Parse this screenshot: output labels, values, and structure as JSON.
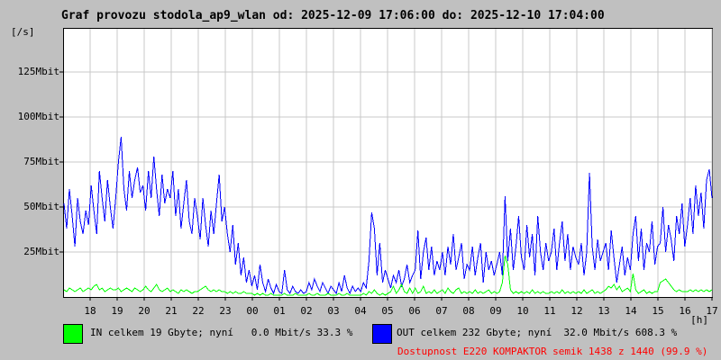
{
  "title": "Graf provozu stodola_ap9_wlan od: 2025-12-09 17:06:00 do: 2025-12-10 17:04:00",
  "colors": {
    "page_bg": "#c0c0c0",
    "plot_bg": "#ffffff",
    "grid": "#c8c8c8",
    "axis": "#000000",
    "in": "#00ff00",
    "out": "#0000ff",
    "availability": "#ff0000"
  },
  "y_axis": {
    "unit_label": "[/s]",
    "ticks": [
      {
        "label": "25Mbit",
        "value": 25
      },
      {
        "label": "50Mbit",
        "value": 50
      },
      {
        "label": "75Mbit",
        "value": 75
      },
      {
        "label": "100Mbit",
        "value": 100
      },
      {
        "label": "125Mbit",
        "value": 125
      }
    ]
  },
  "x_axis": {
    "unit_label": "[h]",
    "ticks": [
      "18",
      "19",
      "20",
      "21",
      "22",
      "23",
      "00",
      "01",
      "02",
      "03",
      "04",
      "05",
      "06",
      "07",
      "08",
      "09",
      "10",
      "11",
      "12",
      "13",
      "14",
      "15",
      "16",
      "17"
    ]
  },
  "legend": {
    "in": {
      "label": "IN celkem 19 Gbyte; nyní   0.0 Mbit/s 33.3 %",
      "color": "#00ff00"
    },
    "out": {
      "label": "OUT celkem 232 Gbyte; nyní  32.0 Mbit/s 608.3 %",
      "color": "#0000ff"
    },
    "availability": {
      "label": "Dostupnost E220 KOMPAKTOR semik 1438 z 1440 (99.9 %)",
      "color": "#ff0000"
    }
  },
  "chart_data": {
    "type": "line",
    "title": "Graf provozu stodola_ap9_wlan",
    "time_start": "2025-12-09 17:06:00",
    "time_end": "2025-12-10 17:04:00",
    "unit": "Mbit/s",
    "ylim": [
      0,
      149
    ],
    "grid": true,
    "sample_interval_minutes": 6,
    "series": [
      {
        "name": "OUT",
        "color": "#0000ff",
        "values": [
          52,
          38,
          60,
          45,
          28,
          55,
          42,
          35,
          48,
          40,
          62,
          48,
          35,
          70,
          55,
          42,
          65,
          50,
          38,
          55,
          75,
          89,
          60,
          48,
          70,
          55,
          65,
          72,
          58,
          62,
          48,
          70,
          55,
          78,
          60,
          45,
          68,
          52,
          60,
          55,
          70,
          45,
          60,
          38,
          52,
          65,
          42,
          35,
          55,
          45,
          32,
          55,
          40,
          28,
          48,
          35,
          52,
          68,
          42,
          50,
          35,
          25,
          40,
          18,
          30,
          12,
          22,
          8,
          15,
          6,
          12,
          4,
          18,
          8,
          3,
          10,
          5,
          2,
          7,
          3,
          2,
          15,
          4,
          2,
          6,
          3,
          2,
          4,
          2,
          3,
          8,
          4,
          10,
          6,
          3,
          8,
          5,
          2,
          6,
          4,
          2,
          8,
          3,
          12,
          5,
          2,
          6,
          3,
          5,
          3,
          8,
          5,
          20,
          47,
          38,
          12,
          30,
          8,
          15,
          10,
          5,
          12,
          8,
          15,
          6,
          10,
          18,
          8,
          12,
          15,
          37,
          10,
          25,
          33,
          15,
          28,
          12,
          20,
          15,
          25,
          12,
          28,
          18,
          35,
          15,
          22,
          30,
          10,
          18,
          15,
          28,
          12,
          22,
          30,
          8,
          25,
          15,
          20,
          12,
          18,
          25,
          12,
          56,
          20,
          38,
          15,
          28,
          45,
          22,
          15,
          40,
          22,
          35,
          12,
          45,
          25,
          15,
          30,
          20,
          25,
          38,
          15,
          30,
          42,
          20,
          35,
          15,
          28,
          22,
          18,
          30,
          12,
          25,
          69,
          28,
          15,
          32,
          20,
          25,
          30,
          15,
          37,
          22,
          8,
          18,
          28,
          12,
          22,
          15,
          35,
          45,
          20,
          38,
          15,
          30,
          25,
          42,
          18,
          28,
          30,
          50,
          25,
          40,
          32,
          20,
          45,
          35,
          52,
          28,
          40,
          55,
          35,
          62,
          45,
          58,
          38,
          65,
          71,
          55
        ]
      },
      {
        "name": "IN",
        "color": "#00ff00",
        "values": [
          4,
          3,
          5,
          4,
          3,
          4,
          5,
          3,
          4,
          5,
          4,
          6,
          7,
          4,
          5,
          3,
          4,
          5,
          4,
          4,
          5,
          3,
          4,
          5,
          4,
          3,
          5,
          4,
          3,
          4,
          6,
          4,
          3,
          5,
          7,
          4,
          3,
          4,
          5,
          3,
          4,
          3,
          2,
          4,
          3,
          4,
          3,
          2,
          3,
          3,
          4,
          5,
          6,
          4,
          3,
          4,
          3,
          4,
          3,
          3,
          2,
          3,
          2,
          3,
          2,
          2,
          3,
          2,
          2,
          2,
          1,
          2,
          1,
          2,
          1,
          1,
          2,
          1,
          1,
          1,
          1,
          2,
          1,
          1,
          1,
          2,
          1,
          1,
          1,
          1,
          2,
          1,
          1,
          2,
          1,
          1,
          1,
          2,
          1,
          1,
          1,
          2,
          1,
          1,
          2,
          1,
          1,
          1,
          1,
          1,
          2,
          1,
          3,
          2,
          4,
          2,
          1,
          2,
          1,
          2,
          3,
          6,
          2,
          4,
          7,
          3,
          2,
          5,
          2,
          5,
          2,
          3,
          6,
          2,
          3,
          2,
          4,
          2,
          3,
          4,
          2,
          5,
          3,
          2,
          4,
          5,
          2,
          3,
          2,
          3,
          2,
          4,
          2,
          3,
          2,
          3,
          4,
          2,
          3,
          2,
          3,
          8,
          23,
          18,
          4,
          2,
          3,
          2,
          3,
          2,
          3,
          2,
          4,
          2,
          3,
          2,
          3,
          2,
          2,
          3,
          2,
          3,
          2,
          4,
          2,
          3,
          2,
          3,
          2,
          3,
          2,
          4,
          2,
          3,
          4,
          2,
          3,
          2,
          3,
          4,
          6,
          5,
          7,
          4,
          6,
          3,
          4,
          5,
          3,
          13,
          4,
          2,
          3,
          4,
          2,
          3,
          2,
          3,
          3,
          8,
          9,
          10,
          8,
          6,
          4,
          3,
          4,
          3,
          3,
          3,
          4,
          3,
          4,
          3,
          4,
          3,
          4,
          3,
          4
        ]
      }
    ]
  }
}
